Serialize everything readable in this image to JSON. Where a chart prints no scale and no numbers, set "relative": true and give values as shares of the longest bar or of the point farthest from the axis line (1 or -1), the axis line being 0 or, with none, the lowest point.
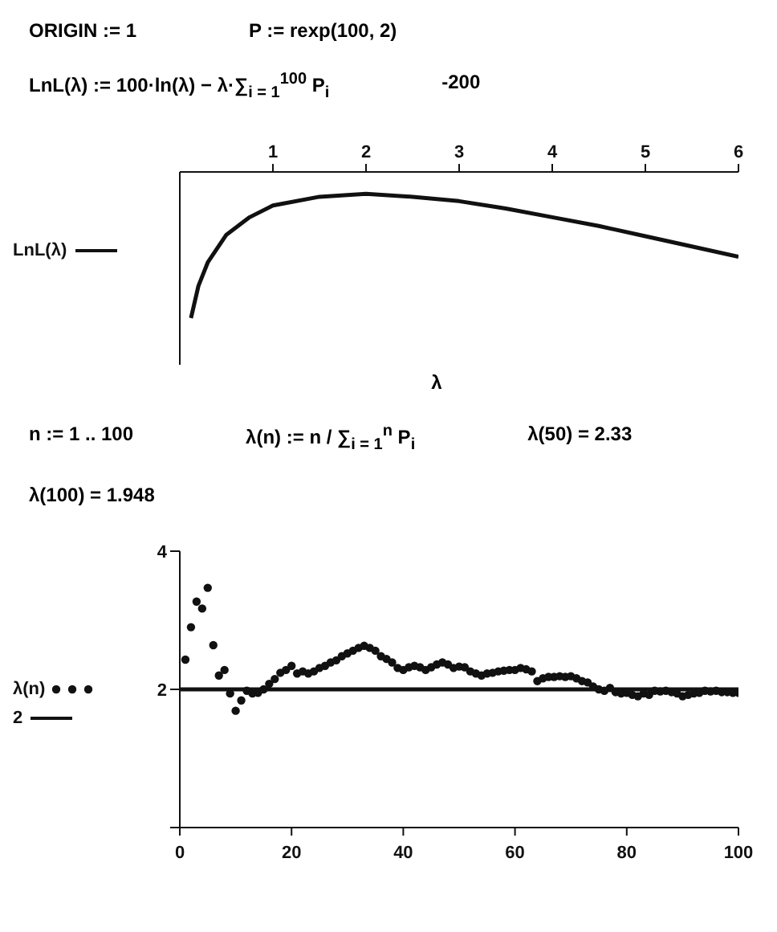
{
  "chart_data": [
    {
      "type": "line",
      "annotations": [
        "ORIGIN := 1",
        "P := rexp(100, 2)",
        "LnL(λ) := 100·ln(λ) − λ·∑$_{i = 1}$$^{100}$ P$_{i}$",
        "-200"
      ],
      "xlabel": "λ",
      "x": [
        0.12,
        0.2,
        0.3,
        0.5,
        0.75,
        1,
        1.5,
        2,
        2.5,
        3,
        3.5,
        4,
        4.5,
        5,
        5.5,
        6
      ],
      "series": [
        {
          "name": "LnL(λ)",
          "color": "#111111",
          "values": [
            -1,
            -0.78,
            -0.62,
            -0.43,
            -0.31,
            -0.23,
            -0.17,
            -0.15,
            -0.17,
            -0.2,
            -0.25,
            -0.31,
            -0.37,
            -0.44,
            -0.51,
            -0.58
          ]
        }
      ],
      "relative": true,
      "xlim": [
        0,
        6
      ],
      "xticks": [
        1,
        2,
        3,
        4,
        5,
        6
      ],
      "grid": false,
      "legend": "left",
      "marker": "none",
      "line_style": "solid"
    },
    {
      "type": "scatter",
      "annotations": [
        "n := 1 .. 100",
        "λ(n) := n / ∑$_{i = 1}$$^{n}$ P$_{i}$",
        "λ(50) = 2.33",
        "λ(100) = 1.948"
      ],
      "x": [
        1,
        2,
        3,
        4,
        5,
        6,
        7,
        8,
        9,
        10,
        11,
        12,
        13,
        14,
        15,
        16,
        17,
        18,
        19,
        20,
        21,
        22,
        23,
        24,
        25,
        26,
        27,
        28,
        29,
        30,
        31,
        32,
        33,
        34,
        35,
        36,
        37,
        38,
        39,
        40,
        41,
        42,
        43,
        44,
        45,
        46,
        47,
        48,
        49,
        50,
        51,
        52,
        53,
        54,
        55,
        56,
        57,
        58,
        59,
        60,
        61,
        62,
        63,
        64,
        65,
        66,
        67,
        68,
        69,
        70,
        71,
        72,
        73,
        74,
        75,
        76,
        77,
        78,
        79,
        80,
        81,
        82,
        83,
        84,
        85,
        86,
        87,
        88,
        89,
        90,
        91,
        92,
        93,
        94,
        95,
        96,
        97,
        98,
        99,
        100
      ],
      "series": [
        {
          "name": "λ(n)",
          "color": "#111111",
          "marker": "circle",
          "values": [
            2.43,
            2.9,
            3.27,
            3.17,
            3.47,
            2.64,
            2.2,
            2.28,
            1.94,
            1.69,
            1.84,
            1.98,
            1.94,
            1.95,
            2.0,
            2.08,
            2.15,
            2.24,
            2.28,
            2.34,
            2.23,
            2.26,
            2.23,
            2.26,
            2.31,
            2.34,
            2.39,
            2.42,
            2.48,
            2.52,
            2.56,
            2.6,
            2.63,
            2.6,
            2.56,
            2.48,
            2.44,
            2.39,
            2.31,
            2.28,
            2.32,
            2.34,
            2.32,
            2.28,
            2.32,
            2.36,
            2.39,
            2.36,
            2.31,
            2.33,
            2.32,
            2.26,
            2.23,
            2.2,
            2.23,
            2.24,
            2.26,
            2.27,
            2.28,
            2.28,
            2.31,
            2.29,
            2.26,
            2.12,
            2.16,
            2.18,
            2.18,
            2.19,
            2.18,
            2.19,
            2.16,
            2.12,
            2.1,
            2.04,
            2.0,
            1.98,
            2.02,
            1.96,
            1.94,
            1.95,
            1.92,
            1.9,
            1.94,
            1.92,
            1.98,
            1.97,
            1.98,
            1.96,
            1.94,
            1.9,
            1.92,
            1.94,
            1.95,
            1.98,
            1.97,
            1.98,
            1.96,
            1.96,
            1.95,
            1.95
          ]
        },
        {
          "name": "2",
          "type": "line",
          "color": "#111111",
          "marker": "none",
          "line_style": "solid",
          "x": [
            0,
            100
          ],
          "values": [
            2,
            2
          ]
        }
      ],
      "xlim": [
        0,
        100
      ],
      "xticks": [
        0,
        20,
        40,
        60,
        80,
        100
      ],
      "ylim": [
        0,
        4
      ],
      "yticks": [
        {
          "value": 0,
          "label": null
        },
        2,
        4
      ],
      "grid": false,
      "legend": "left"
    }
  ]
}
